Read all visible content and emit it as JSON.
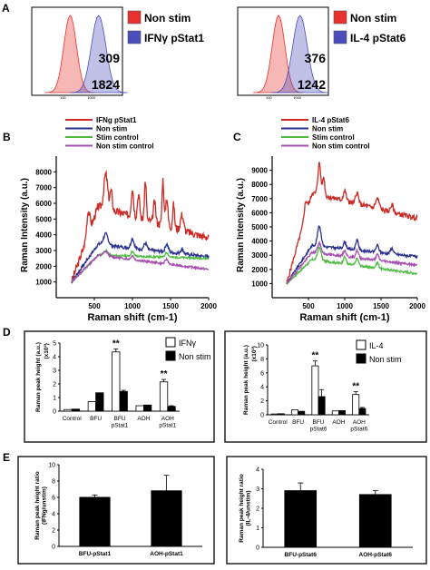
{
  "panels": {
    "A": "A",
    "B": "B",
    "C": "C",
    "D": "D",
    "E": "E"
  },
  "chart_data": [
    {
      "id": "A-left",
      "type": "area",
      "legend": [
        "Non stim",
        "IFNγ pStat1"
      ],
      "colors": [
        "#e8302c",
        "#4a4dbb"
      ],
      "values": [
        "309",
        "1824"
      ],
      "x_scale": "log",
      "peaks": [
        180,
        1800
      ]
    },
    {
      "id": "A-right",
      "type": "area",
      "legend": [
        "Non stim",
        "IL-4 pStat6"
      ],
      "colors": [
        "#e8302c",
        "#4a4dbb"
      ],
      "values": [
        "376",
        "1242"
      ],
      "x_scale": "log",
      "peaks": [
        220,
        1250
      ]
    },
    {
      "id": "B",
      "type": "line",
      "xlabel": "Raman shift (cm-1)",
      "ylabel": "Raman Intensity (a.u.)",
      "xlim": [
        0,
        2000
      ],
      "ylim": [
        0,
        9000
      ],
      "xticks": [
        "500",
        "1000",
        "1500",
        "2000"
      ],
      "yticks": [
        "1000",
        "2000",
        "3000",
        "4000",
        "5000",
        "6000",
        "7000",
        "8000"
      ],
      "series": [
        {
          "name": "IFNg pStat1",
          "color": "#cc2a24"
        },
        {
          "name": "Non stim",
          "color": "#2a2f8f"
        },
        {
          "name": "Stim control",
          "color": "#4cbb3f"
        },
        {
          "name": "Non stim control",
          "color": "#a64db0"
        }
      ]
    },
    {
      "id": "C",
      "type": "line",
      "xlabel": "Raman shift (cm-1)",
      "ylabel": "Raman Intensity (a.u.)",
      "xlim": [
        0,
        2000
      ],
      "ylim": [
        0,
        10000
      ],
      "xticks": [
        "500",
        "1000",
        "1500",
        "2000"
      ],
      "yticks": [
        "1000",
        "2000",
        "3000",
        "4000",
        "5000",
        "6000",
        "7000",
        "8000",
        "9000"
      ],
      "series": [
        {
          "name": "IL-4 pStat6",
          "color": "#cc2a24"
        },
        {
          "name": "Non stim",
          "color": "#2a2f8f"
        },
        {
          "name": "Stim control",
          "color": "#4cbb3f"
        },
        {
          "name": "Non stim control",
          "color": "#a64db0"
        }
      ]
    },
    {
      "id": "D-left",
      "type": "bar",
      "ylabel": "Raman peak height (a.u.)",
      "yunit": "(x10³)",
      "ylim": [
        0,
        5
      ],
      "yticks": [
        "0",
        "1",
        "2",
        "3",
        "4",
        "5"
      ],
      "categories": [
        "Control",
        "BFU",
        "BFU\npStat1",
        "AOH",
        "AOH\npStat1"
      ],
      "series": [
        {
          "name": "IFNγ",
          "values": [
            0.12,
            0.7,
            4.35,
            0.4,
            2.15
          ],
          "errors": [
            0,
            0,
            0.22,
            0,
            0.18
          ]
        },
        {
          "name": "Non stim",
          "values": [
            0.15,
            1.35,
            1.45,
            0.45,
            0.35
          ],
          "errors": [
            0,
            0,
            0.08,
            0,
            0.05
          ]
        }
      ],
      "significance": [
        "",
        "",
        "**",
        "",
        "**"
      ]
    },
    {
      "id": "D-right",
      "type": "bar",
      "ylabel": "Raman peak height (a.u.)",
      "yunit": "(x10³)",
      "ylim": [
        0,
        10
      ],
      "yticks": [
        "0",
        "2",
        "4",
        "6",
        "8",
        "10"
      ],
      "categories": [
        "Control",
        "BFU",
        "BFU\npStat6",
        "AOH",
        "AOH\npStat6"
      ],
      "series": [
        {
          "name": "IL-4",
          "values": [
            0.12,
            0.7,
            7.0,
            0.55,
            2.9
          ],
          "errors": [
            0,
            0,
            0.7,
            0,
            0.4
          ]
        },
        {
          "name": "Non stim",
          "values": [
            0.15,
            0.5,
            2.6,
            0.6,
            0.9
          ],
          "errors": [
            0,
            0,
            1.0,
            0,
            0.15
          ]
        }
      ],
      "significance": [
        "",
        "",
        "**",
        "",
        "**"
      ]
    },
    {
      "id": "E-left",
      "type": "bar",
      "ylabel": "Raman peak height ratio\n(IFNg/unstim)",
      "ylim": [
        0,
        10
      ],
      "yticks": [
        "0",
        "2",
        "4",
        "6",
        "8",
        "10"
      ],
      "categories": [
        "BFU-pStat1",
        "AOH-pStat1"
      ],
      "values": [
        6.0,
        6.8
      ],
      "errors": [
        0.3,
        1.9
      ]
    },
    {
      "id": "E-right",
      "type": "bar",
      "ylabel": "Raman peak height ratio\n(IL-4/unstim)",
      "ylim": [
        0,
        4
      ],
      "yticks": [
        "0",
        "1",
        "2",
        "3",
        "4"
      ],
      "categories": [
        "BFU-pStat6",
        "AOH-pStat6"
      ],
      "values": [
        2.9,
        2.7
      ],
      "errors": [
        0.4,
        0.2
      ]
    }
  ]
}
